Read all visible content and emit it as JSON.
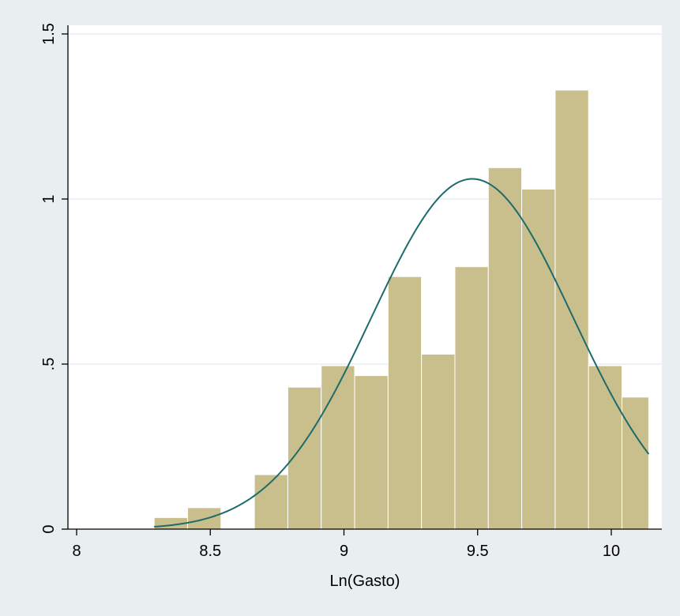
{
  "chart_data": {
    "type": "bar",
    "subtype": "histogram-with-normal-density",
    "title": "",
    "xlabel": "Ln(Gasto)",
    "ylabel": "",
    "xlim": [
      8,
      10.15
    ],
    "ylim": [
      0,
      1.5
    ],
    "x_ticks": [
      8,
      8.5,
      9,
      9.5,
      10
    ],
    "x_tick_labels": [
      "8",
      "8.5",
      "9",
      "9.5",
      "10"
    ],
    "y_ticks": [
      0,
      0.5,
      1,
      1.5
    ],
    "y_tick_labels": [
      "0",
      ".5",
      "1",
      "1.5"
    ],
    "grid": "horizontal",
    "bins": [
      {
        "x0": 8.29,
        "x1": 8.415,
        "density": 0.035
      },
      {
        "x0": 8.415,
        "x1": 8.54,
        "density": 0.065
      },
      {
        "x0": 8.54,
        "x1": 8.665,
        "density": 0.0
      },
      {
        "x0": 8.665,
        "x1": 8.79,
        "density": 0.165
      },
      {
        "x0": 8.79,
        "x1": 8.915,
        "density": 0.43
      },
      {
        "x0": 8.915,
        "x1": 9.04,
        "density": 0.495
      },
      {
        "x0": 9.04,
        "x1": 9.165,
        "density": 0.465
      },
      {
        "x0": 9.165,
        "x1": 9.29,
        "density": 0.765
      },
      {
        "x0": 9.29,
        "x1": 9.415,
        "density": 0.53
      },
      {
        "x0": 9.415,
        "x1": 9.54,
        "density": 0.795
      },
      {
        "x0": 9.54,
        "x1": 9.665,
        "density": 1.095
      },
      {
        "x0": 9.665,
        "x1": 9.79,
        "density": 1.03
      },
      {
        "x0": 9.79,
        "x1": 9.915,
        "density": 1.33
      },
      {
        "x0": 9.915,
        "x1": 10.04,
        "density": 0.495
      },
      {
        "x0": 10.04,
        "x1": 10.14,
        "density": 0.4
      }
    ],
    "normal_curve": {
      "mean": 9.48,
      "sd": 0.376,
      "x_range": [
        8.29,
        10.14
      ]
    },
    "colors": {
      "bar_fill": "#c9bf8c",
      "bar_edge": "#ffffff",
      "curve": "#1d6b6b",
      "plot_bg": "#ffffff",
      "outer_bg": "#e9eef1",
      "grid": "#e3ebee"
    }
  }
}
